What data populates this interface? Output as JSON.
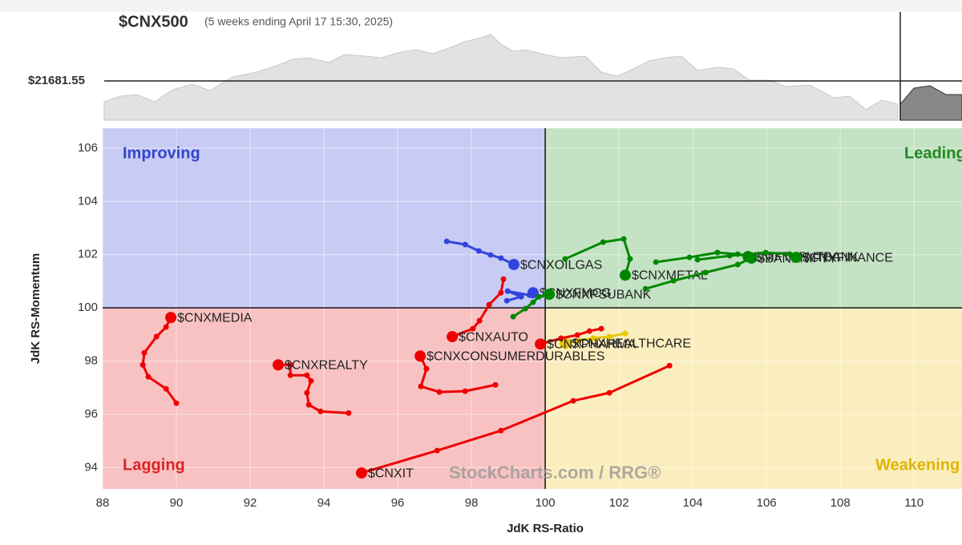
{
  "chart_data": {
    "type": "rrg",
    "title": "$CNX500",
    "subtitle": "(5 weeks ending April 17 15:30, 2025)",
    "price_label": "$21681.55",
    "x_label": "JdK RS-Ratio",
    "y_label": "JdK RS-Momentum",
    "watermark": "StockCharts.com / RRG®",
    "quadrants": {
      "improving": "Improving",
      "leading": "Leading",
      "lagging": "Lagging",
      "weakening": "Weakening"
    },
    "center_x": 100,
    "center_y": 100,
    "xlim": [
      88,
      111.3
    ],
    "ylim": [
      93.2,
      106.75
    ],
    "xticks": [
      88,
      90,
      92,
      94,
      96,
      98,
      100,
      102,
      104,
      106,
      108,
      110
    ],
    "yticks": [
      94,
      96,
      98,
      100,
      102,
      104,
      106
    ],
    "grid": true,
    "series": [
      {
        "name": "$CNXMEDIA",
        "color": "#ee0000",
        "x": [
          90.0,
          89.72,
          89.24,
          89.09,
          89.13,
          89.46,
          89.72,
          89.85
        ],
        "y": [
          96.42,
          96.96,
          97.41,
          97.86,
          98.31,
          98.92,
          99.28,
          99.64
        ]
      },
      {
        "name": "$CNXREALTY",
        "color": "#ee0000",
        "x": [
          94.67,
          93.91,
          93.59,
          93.54,
          93.65,
          93.54,
          93.09,
          93.09,
          92.76
        ],
        "y": [
          96.05,
          96.11,
          96.36,
          96.81,
          97.26,
          97.47,
          97.47,
          97.86,
          97.86
        ]
      },
      {
        "name": "$CNXIT",
        "color": "#ee0000",
        "x": [
          103.37,
          101.74,
          100.76,
          98.8,
          97.07,
          95.02
        ],
        "y": [
          97.83,
          96.81,
          96.51,
          95.39,
          94.64,
          93.8
        ]
      },
      {
        "name": "$CNXAUTO",
        "color": "#ee0000",
        "x": [
          98.87,
          98.8,
          98.48,
          98.22,
          98.04,
          97.48
        ],
        "y": [
          101.08,
          100.57,
          100.12,
          99.52,
          99.22,
          98.92
        ]
      },
      {
        "name": "$CNXCONSUMERDURABLES",
        "color": "#ee0000",
        "x": [
          98.65,
          97.83,
          97.13,
          96.63,
          96.78,
          96.61
        ],
        "y": [
          97.11,
          96.87,
          96.84,
          97.05,
          97.71,
          98.19
        ]
      },
      {
        "name": "$CNXOILGAS",
        "color": "#3344dd",
        "x": [
          97.33,
          97.83,
          98.2,
          98.52,
          98.8,
          99.15
        ],
        "y": [
          102.5,
          102.38,
          102.14,
          101.99,
          101.87,
          101.63
        ]
      },
      {
        "name": "$CNXFMCG",
        "color": "#3344dd",
        "x": [
          98.96,
          99.35,
          98.98,
          99.57,
          99.67
        ],
        "y": [
          100.27,
          100.42,
          100.63,
          100.48,
          100.57
        ]
      },
      {
        "name": "$CNXPSUBANK",
        "color": "#008800",
        "x": [
          99.13,
          99.46,
          99.67,
          99.83,
          100.11
        ],
        "y": [
          99.67,
          99.97,
          100.21,
          100.42,
          100.51
        ]
      },
      {
        "name": "$CNXMETAL",
        "color": "#008800",
        "x": [
          100.54,
          101.57,
          102.13,
          102.3,
          102.17
        ],
        "y": [
          101.84,
          102.47,
          102.59,
          101.84,
          101.23
        ]
      },
      {
        "name": "$BANKNIFTY",
        "color": "#008800",
        "x": [
          102.72,
          103.48,
          104.35,
          105.22,
          105.59
        ],
        "y": [
          100.72,
          101.02,
          101.33,
          101.63,
          101.87
        ]
      },
      {
        "name": "$NIFTYPVTBANK",
        "color": "#008800",
        "x": [
          103.0,
          103.91,
          104.67,
          105.22,
          105.5
        ],
        "y": [
          101.72,
          101.9,
          102.08,
          102.02,
          101.93
        ]
      },
      {
        "name": "$CNXFINANCE",
        "color": "#008800",
        "x": [
          104.13,
          105.0,
          105.98,
          106.63,
          106.8
        ],
        "y": [
          101.81,
          101.96,
          102.08,
          102.02,
          101.9
        ]
      },
      {
        "name": "$CNXHEALTHCARE",
        "color": "#e8c800",
        "x": [
          102.17,
          101.74,
          101.3,
          100.91,
          100.54
        ],
        "y": [
          99.04,
          98.92,
          98.86,
          98.77,
          98.67
        ]
      },
      {
        "name": "$CNXPHARMA",
        "color": "#ee0000",
        "x": [
          101.52,
          101.2,
          100.87,
          100.43,
          99.87
        ],
        "y": [
          99.22,
          99.13,
          98.98,
          98.86,
          98.64
        ]
      }
    ]
  }
}
